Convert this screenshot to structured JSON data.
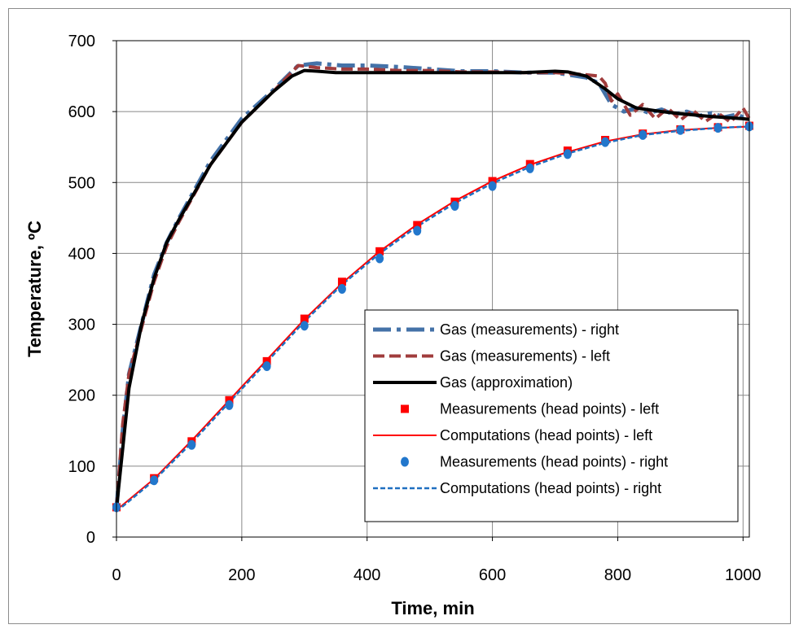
{
  "chart_data": {
    "type": "line",
    "xlabel": "Time, min",
    "ylabel": "Temperature, ºC",
    "xlim": [
      0,
      1010
    ],
    "ylim": [
      0,
      700
    ],
    "xticks": [
      0,
      200,
      400,
      600,
      800,
      1000
    ],
    "yticks": [
      0,
      100,
      200,
      300,
      400,
      500,
      600,
      700
    ],
    "grid": true,
    "legend_position": "bottom-right",
    "series": [
      {
        "name": "Gas (measurements) - right",
        "color": "#4472a8",
        "style": "long-dash-dot",
        "x": [
          0,
          10,
          20,
          40,
          60,
          80,
          100,
          150,
          200,
          250,
          290,
          320,
          360,
          400,
          450,
          500,
          550,
          600,
          650,
          700,
          750,
          770,
          790,
          810,
          830,
          850,
          870,
          890,
          910,
          930,
          950,
          970,
          990,
          1000,
          1010
        ],
        "y": [
          40,
          150,
          230,
          300,
          370,
          415,
          450,
          530,
          590,
          630,
          665,
          668,
          665,
          665,
          663,
          660,
          657,
          657,
          655,
          655,
          648,
          640,
          610,
          600,
          605,
          598,
          603,
          596,
          600,
          594,
          598,
          592,
          596,
          592,
          590
        ]
      },
      {
        "name": "Gas (measurements) - left",
        "color": "#a03c3c",
        "style": "dashed",
        "x": [
          0,
          10,
          20,
          40,
          60,
          80,
          100,
          150,
          200,
          250,
          290,
          320,
          360,
          400,
          450,
          500,
          550,
          600,
          650,
          700,
          750,
          770,
          780,
          790,
          800,
          820,
          840,
          860,
          880,
          900,
          920,
          940,
          960,
          980,
          1000,
          1010
        ],
        "y": [
          40,
          160,
          230,
          295,
          360,
          410,
          445,
          525,
          585,
          628,
          665,
          662,
          660,
          660,
          658,
          658,
          656,
          656,
          655,
          655,
          652,
          650,
          640,
          615,
          625,
          595,
          610,
          590,
          605,
          588,
          602,
          586,
          598,
          585,
          605,
          590
        ]
      },
      {
        "name": "Gas (approximation)",
        "color": "#000000",
        "style": "solid-thick",
        "x": [
          0,
          20,
          40,
          60,
          80,
          100,
          150,
          200,
          250,
          280,
          300,
          320,
          350,
          400,
          500,
          600,
          650,
          700,
          720,
          750,
          780,
          800,
          830,
          870,
          900,
          950,
          1000,
          1010
        ],
        "y": [
          40,
          210,
          300,
          365,
          415,
          448,
          525,
          585,
          628,
          650,
          658,
          657,
          655,
          655,
          655,
          655,
          655,
          657,
          656,
          650,
          632,
          618,
          605,
          600,
          597,
          593,
          590,
          589
        ]
      },
      {
        "name": "Measurements (head points) - left",
        "color": "#ff0000",
        "style": "square-markers",
        "x": [
          0,
          60,
          120,
          180,
          240,
          300,
          360,
          420,
          480,
          540,
          600,
          660,
          720,
          780,
          840,
          900,
          960,
          1010
        ],
        "y": [
          42,
          83,
          135,
          193,
          248,
          308,
          360,
          403,
          440,
          473,
          502,
          526,
          545,
          560,
          569,
          575,
          578,
          580
        ]
      },
      {
        "name": "Computations (head points) - left",
        "color": "#ff0000",
        "style": "solid",
        "x": [
          0,
          60,
          120,
          180,
          240,
          300,
          360,
          420,
          480,
          540,
          600,
          660,
          720,
          780,
          840,
          900,
          960,
          1010
        ],
        "y": [
          38,
          82,
          136,
          193,
          250,
          307,
          358,
          403,
          441,
          474,
          502,
          525,
          543,
          558,
          568,
          574,
          577,
          579
        ]
      },
      {
        "name": "Measurements (head points) - right",
        "color": "#2277cc",
        "style": "circle-markers",
        "x": [
          0,
          60,
          120,
          180,
          240,
          300,
          360,
          420,
          480,
          540,
          600,
          660,
          720,
          780,
          840,
          900,
          960,
          1010
        ],
        "y": [
          42,
          80,
          130,
          186,
          241,
          298,
          350,
          393,
          432,
          467,
          495,
          520,
          540,
          557,
          567,
          574,
          577,
          579
        ]
      },
      {
        "name": "Computations (head points) - right",
        "color": "#1f6fc0",
        "style": "dotted",
        "x": [
          0,
          60,
          120,
          180,
          240,
          300,
          360,
          420,
          480,
          540,
          600,
          660,
          720,
          780,
          840,
          900,
          960,
          1010
        ],
        "y": [
          36,
          80,
          133,
          190,
          247,
          304,
          356,
          400,
          438,
          471,
          499,
          522,
          541,
          556,
          567,
          573,
          577,
          579
        ]
      }
    ]
  }
}
